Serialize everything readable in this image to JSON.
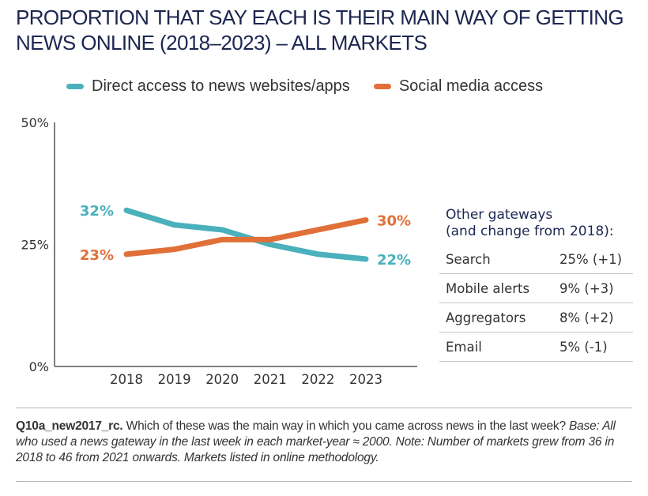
{
  "title": "PROPORTION THAT SAY EACH IS THEIR MAIN WAY OF GETTING NEWS ONLINE (2018–2023) – ALL MARKETS",
  "colors": {
    "direct": "#4ab0bc",
    "social": "#e07038",
    "title": "#1c2650",
    "axis": "#555555",
    "rule": "#b5b5b5"
  },
  "legend": [
    {
      "label": "Direct access to news websites/apps",
      "color": "#4ab0bc"
    },
    {
      "label": "Social media access",
      "color": "#e07038"
    }
  ],
  "chart_data": {
    "type": "line",
    "title": "Proportion that say each is their main way of getting news online (2018–2023) – All markets",
    "xlabel": "",
    "ylabel": "",
    "x": [
      "2018",
      "2019",
      "2020",
      "2021",
      "2022",
      "2023"
    ],
    "yticks": [
      "0%",
      "25%",
      "50%"
    ],
    "ytick_values": [
      0,
      25,
      50
    ],
    "ylim": [
      0,
      50
    ],
    "grid": false,
    "legend_position": "top",
    "series": [
      {
        "name": "Direct access to news websites/apps",
        "color": "#4ab0bc",
        "values": [
          32,
          29,
          28,
          25,
          23,
          22
        ],
        "start_label": "32%",
        "end_label": "22%"
      },
      {
        "name": "Social media access",
        "color": "#e07038",
        "values": [
          23,
          24,
          26,
          26,
          28,
          30
        ],
        "start_label": "23%",
        "end_label": "30%"
      }
    ]
  },
  "gateways": {
    "title_line1": "Other gateways",
    "title_line2": "(and change from 2018):",
    "rows": [
      {
        "name": "Search",
        "value": "25% (+1)"
      },
      {
        "name": "Mobile alerts",
        "value": "9% (+3)"
      },
      {
        "name": "Aggregators",
        "value": "8% (+2)"
      },
      {
        "name": "Email",
        "value": "5% (-1)"
      }
    ]
  },
  "footnote": {
    "question_id": "Q10a_new2017_rc.",
    "question_text": " Which of these was the main way in which you came across news in the last week? ",
    "base_note": "Base: All who used a news gateway in the last week in each market-year ≈ 2000. Note: Number of markets grew from 36 in 2018 to 46 from 2021 onwards. Markets listed in online methodology."
  }
}
